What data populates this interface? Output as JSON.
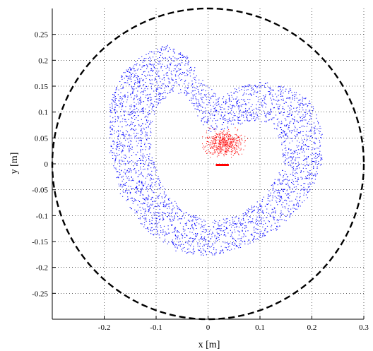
{
  "chart_data": {
    "type": "scatter",
    "title": "",
    "xlabel": "x [m]",
    "ylabel": "y [m]",
    "xlim": [
      -0.3,
      0.3
    ],
    "ylim": [
      -0.3,
      0.3
    ],
    "grid": true,
    "x_ticks": [
      -0.2,
      -0.1,
      0,
      0.1,
      0.2,
      0.3
    ],
    "x_tick_labels": [
      "-0.2",
      "-0.1",
      "0",
      "0.1",
      "0.2",
      "0.3"
    ],
    "y_ticks": [
      0.25,
      0.2,
      0.15,
      0.1,
      0.05,
      0,
      -0.05,
      -0.1,
      -0.15,
      -0.2,
      -0.25
    ],
    "y_tick_labels": [
      "0.25",
      "0.2",
      "0.15",
      "0.1",
      "0.05",
      "0",
      "-0.05",
      "-0.1",
      "-0.15",
      "-0.2",
      "-0.25"
    ],
    "boundary": {
      "shape": "circle",
      "center": [
        0,
        0
      ],
      "radius": 0.3,
      "style": "dashed",
      "color": "#000000"
    },
    "series": [
      {
        "color": "#0000ff",
        "marker": "dot",
        "description_points": "dense point cloud forming a heart-shaped ring around the center",
        "outline_outer": [
          [
            -0.19,
            0.12
          ],
          [
            -0.17,
            0.17
          ],
          [
            -0.13,
            0.21
          ],
          [
            -0.08,
            0.23
          ],
          [
            -0.04,
            0.21
          ],
          [
            -0.01,
            0.16
          ],
          [
            0.02,
            0.13
          ],
          [
            0.06,
            0.15
          ],
          [
            0.1,
            0.16
          ],
          [
            0.15,
            0.15
          ],
          [
            0.2,
            0.12
          ],
          [
            0.22,
            0.06
          ],
          [
            0.22,
            0.0
          ],
          [
            0.19,
            -0.07
          ],
          [
            0.13,
            -0.13
          ],
          [
            0.07,
            -0.16
          ],
          [
            0.0,
            -0.18
          ],
          [
            -0.06,
            -0.17
          ],
          [
            -0.12,
            -0.13
          ],
          [
            -0.17,
            -0.06
          ],
          [
            -0.19,
            0.02
          ],
          [
            -0.19,
            0.09
          ]
        ],
        "outline_inner": [
          [
            -0.1,
            0.11
          ],
          [
            -0.07,
            0.14
          ],
          [
            -0.04,
            0.13
          ],
          [
            -0.02,
            0.09
          ],
          [
            0.0,
            0.06
          ],
          [
            0.04,
            0.07
          ],
          [
            0.08,
            0.08
          ],
          [
            0.12,
            0.08
          ],
          [
            0.14,
            0.04
          ],
          [
            0.14,
            -0.01
          ],
          [
            0.11,
            -0.06
          ],
          [
            0.06,
            -0.1
          ],
          [
            0.0,
            -0.11
          ],
          [
            -0.05,
            -0.09
          ],
          [
            -0.09,
            -0.04
          ],
          [
            -0.11,
            0.02
          ],
          [
            -0.11,
            0.07
          ]
        ]
      },
      {
        "color": "#ff0000",
        "marker": "dot",
        "description_points": "sparse cluster near the center plus a short dense segment",
        "cluster_center": [
          0.03,
          0.04
        ],
        "cluster_spread": [
          0.04,
          0.025
        ],
        "segment": [
          [
            0.015,
            -0.002
          ],
          [
            0.04,
            -0.002
          ]
        ]
      }
    ]
  }
}
